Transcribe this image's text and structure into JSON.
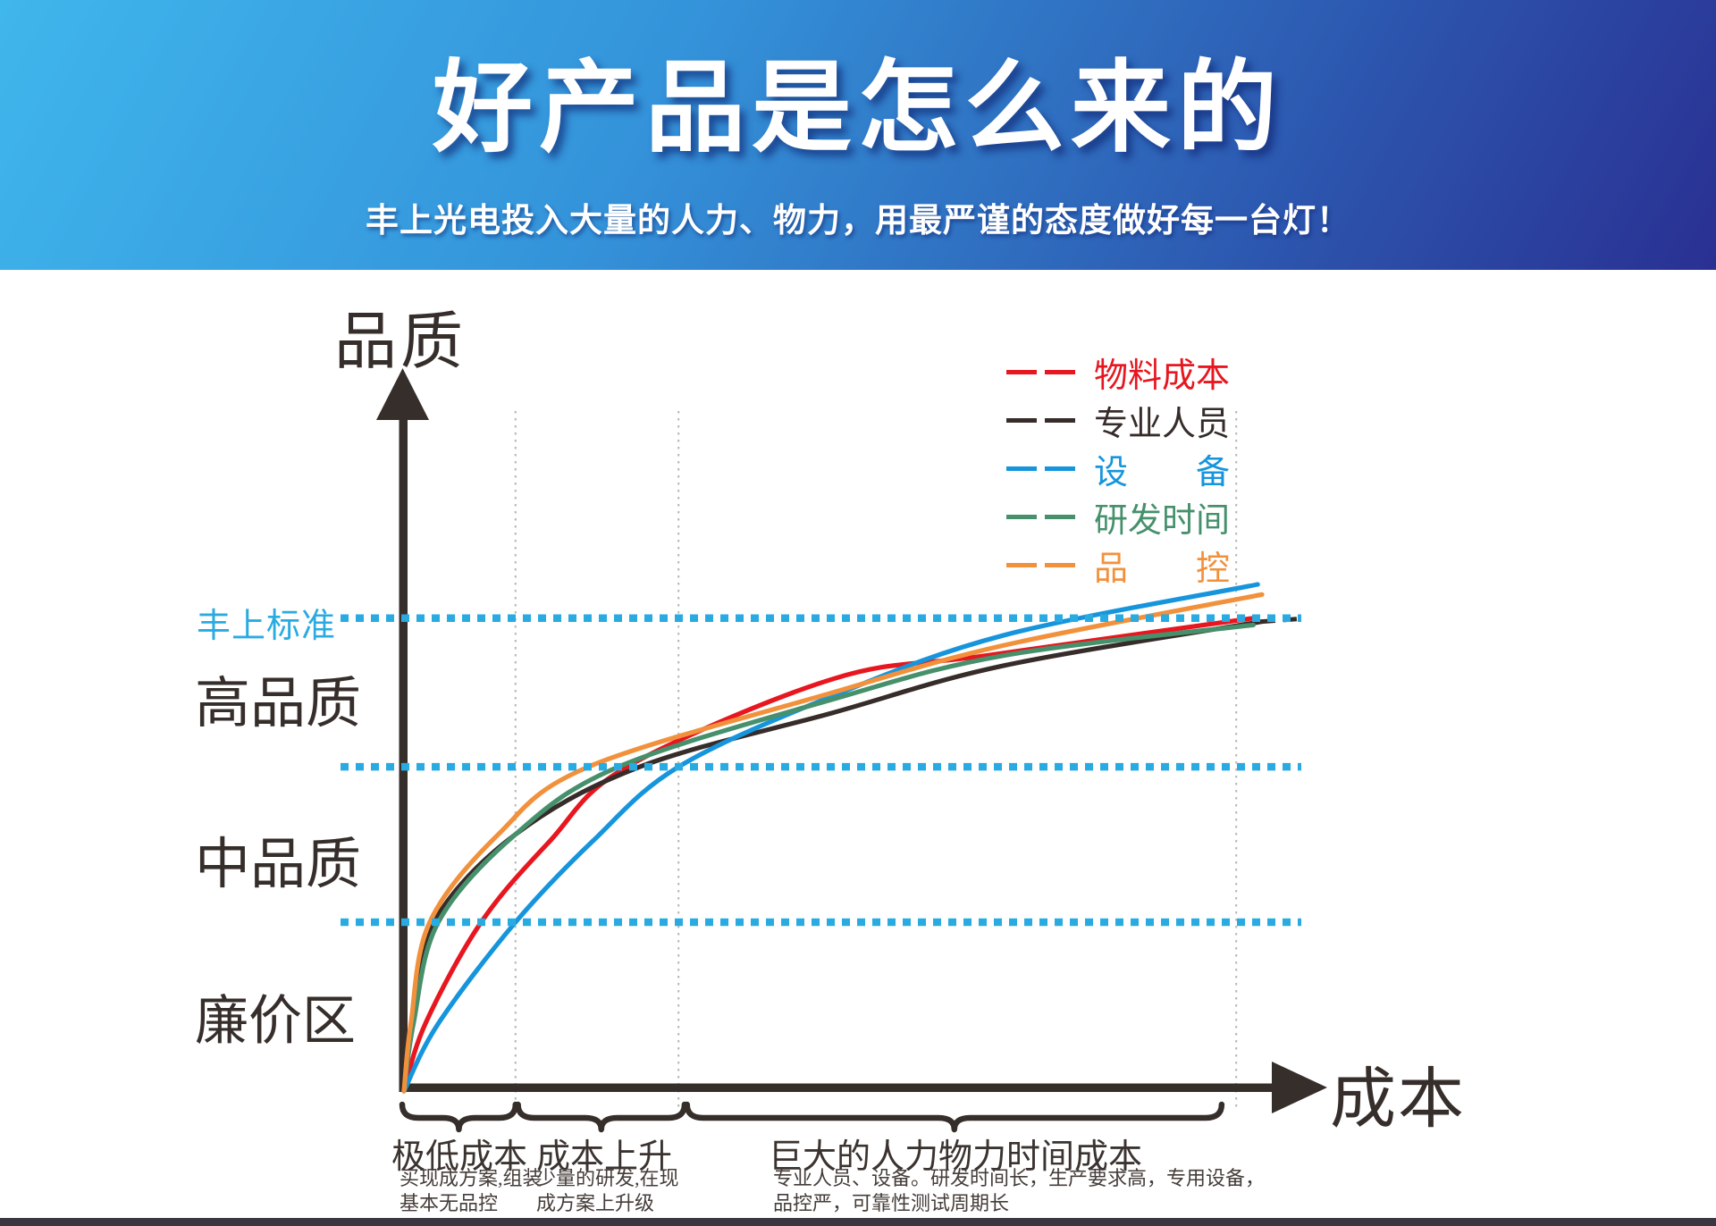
{
  "header": {
    "title": "好产品是怎么来的",
    "subtitle": "丰上光电投入大量的人力、物力，用最严谨的态度做好每一台灯！",
    "bg_top_color": "#3fb6ec",
    "bg_bottom_color": "#2a3092"
  },
  "chart": {
    "y_axis_label": "品质",
    "x_axis_label": "成本",
    "standard_label": "丰上标准",
    "standard_color": "#29abe2",
    "zones": [
      {
        "label": "高品质"
      },
      {
        "label": "中品质"
      },
      {
        "label": "廉价区"
      }
    ],
    "legend": {
      "items": [
        {
          "label": "物料成本",
          "color": "#e7161f"
        },
        {
          "label": "专业人员",
          "color": "#362c29"
        },
        {
          "label": "设　　备",
          "color": "#1695dc"
        },
        {
          "label": "研发时间",
          "color": "#46906c"
        },
        {
          "label": "品　　控",
          "color": "#f2913c"
        }
      ]
    },
    "cost_segments": [
      {
        "label": "极低成本",
        "desc_lines": [
          "买现成方案,组装",
          "基本无品控"
        ]
      },
      {
        "label": "成本上升",
        "desc_lines": [
          "少量的研发,在现",
          "成方案上升级"
        ]
      },
      {
        "label": "巨大的人力物力时间成本",
        "desc_lines": [
          "专业人员、设备。研发时间长，生产要求高，专用设备，",
          "品控严，可靠性测试周期长"
        ]
      }
    ]
  },
  "chart_data": {
    "type": "line",
    "title": "",
    "xlabel": "成本",
    "ylabel": "品质",
    "xlim": [
      0,
      100
    ],
    "ylim": [
      0,
      100
    ],
    "grid": "three dotted vertical cost gridlines",
    "legend_position": "upper right inside",
    "series": [
      {
        "name": "物料成本",
        "color": "#e7161f",
        "points": [
          [
            0,
            0
          ],
          [
            2.5,
            10
          ],
          [
            9,
            25
          ],
          [
            17,
            37
          ],
          [
            26,
            48
          ],
          [
            50,
            61
          ],
          [
            68,
            64.5
          ],
          [
            99,
            70
          ]
        ]
      },
      {
        "name": "专业人员",
        "color": "#362c29",
        "dashed_tail": true,
        "points": [
          [
            0,
            0
          ],
          [
            0.9,
            10
          ],
          [
            3.5,
            25
          ],
          [
            13,
            38
          ],
          [
            27.5,
            48
          ],
          [
            50,
            56
          ],
          [
            70,
            63
          ],
          [
            100,
            69.5
          ]
        ]
      },
      {
        "name": "设备",
        "color": "#1695dc",
        "points": [
          [
            0,
            0
          ],
          [
            4,
            10
          ],
          [
            13,
            25
          ],
          [
            22,
            37
          ],
          [
            32,
            48
          ],
          [
            50,
            58.5
          ],
          [
            70,
            67.5
          ],
          [
            99.5,
            75
          ]
        ]
      },
      {
        "name": "研发时间",
        "color": "#46906c",
        "points": [
          [
            0,
            0
          ],
          [
            1.1,
            10
          ],
          [
            4,
            25
          ],
          [
            13,
            38
          ],
          [
            25,
            48
          ],
          [
            50,
            58
          ],
          [
            70,
            64.5
          ],
          [
            99,
            69
          ]
        ]
      },
      {
        "name": "品控",
        "color": "#f2913c",
        "points": [
          [
            0,
            0
          ],
          [
            0.8,
            10
          ],
          [
            3,
            25
          ],
          [
            11,
            38
          ],
          [
            21.5,
            48
          ],
          [
            50,
            59
          ],
          [
            70,
            66
          ],
          [
            100,
            73.5
          ]
        ]
      }
    ],
    "reference_lines": [
      {
        "label": "丰上标准",
        "quality": 70,
        "color": "#29abe2"
      },
      {
        "label": "",
        "quality": 48,
        "color": "#29abe2"
      },
      {
        "label": "",
        "quality": 25,
        "color": "#29abe2"
      }
    ],
    "cost_gridlines": [
      13,
      32,
      97
    ],
    "cost_segment_ranges": [
      [
        0,
        13
      ],
      [
        13.5,
        32.7
      ],
      [
        33.2,
        95.3
      ]
    ]
  },
  "footer": {
    "bar_color": "#3b3740"
  }
}
